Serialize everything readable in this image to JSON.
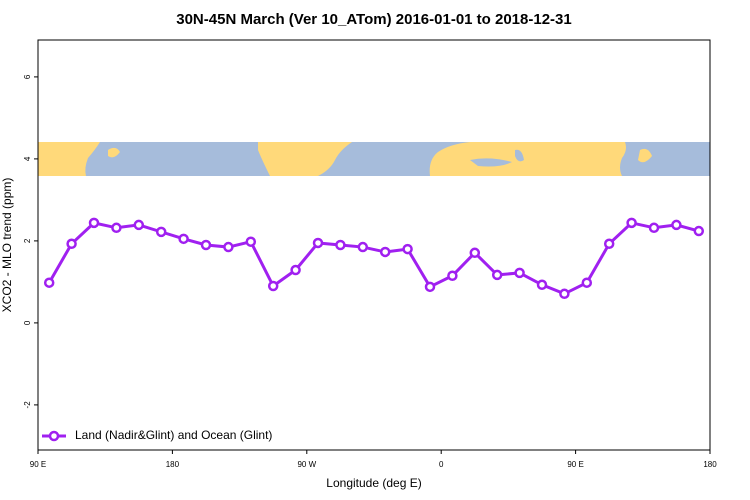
{
  "chart_data": {
    "type": "line",
    "title": "30N-45N March (Ver 10_ATom)   2016-01-01 to 2018-12-31",
    "x_label": "Longitude (deg E)",
    "y_label": "XCO2 - MLO trend (ppm)",
    "x": [
      97.5,
      112.5,
      127.5,
      142.5,
      157.5,
      172.5,
      187.5,
      202.5,
      217.5,
      232.5,
      247.5,
      262.5,
      277.5,
      292.5,
      307.5,
      322.5,
      337.5,
      352.5,
      367.5,
      382.5,
      397.5,
      412.5,
      427.5,
      442.5,
      457.5,
      472.5,
      487.5,
      502.5,
      517.5,
      532.5
    ],
    "series": [
      {
        "name": "Land (Nadir&Glint) and Ocean (Glint)",
        "color": "#a020f0",
        "values": [
          0.98,
          1.93,
          2.44,
          2.32,
          2.39,
          2.22,
          2.05,
          1.9,
          1.85,
          1.98,
          0.9,
          1.29,
          1.95,
          1.9,
          1.85,
          1.73,
          1.8,
          0.88,
          1.15,
          1.71,
          1.17,
          1.22,
          0.93,
          0.71,
          0.98,
          1.93,
          2.44,
          2.32,
          2.39,
          2.24
        ]
      }
    ],
    "xlim": [
      90,
      540
    ],
    "xticks": [
      {
        "value": 90,
        "label": "90 E"
      },
      {
        "value": 180,
        "label": "180"
      },
      {
        "value": 270,
        "label": "90 W"
      },
      {
        "value": 360,
        "label": "0"
      },
      {
        "value": 450,
        "label": "90 E"
      },
      {
        "value": 540,
        "label": "180"
      }
    ],
    "ylim": [
      -3.1,
      6.9
    ],
    "yticks": [
      -2,
      0,
      2,
      4,
      6
    ],
    "legend": "bottomleft"
  }
}
